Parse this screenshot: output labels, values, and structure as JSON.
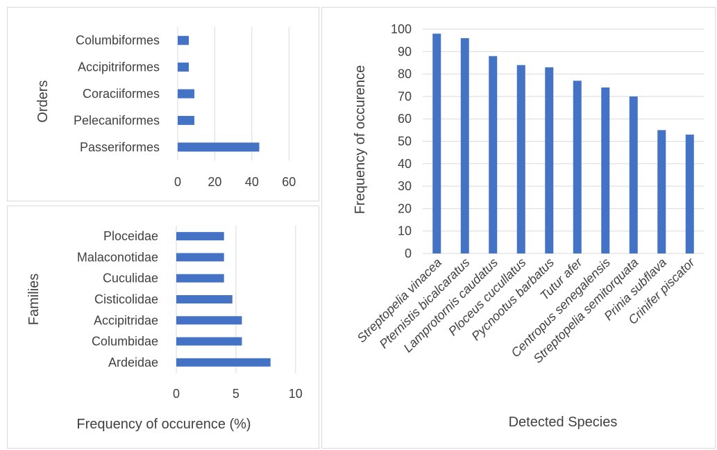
{
  "chart_data": [
    {
      "type": "bar",
      "orientation": "horizontal",
      "categories": [
        "Columbiformes",
        "Accipitriformes",
        "Coraciiformes",
        "Pelecaniformes",
        "Passeriformes"
      ],
      "values": [
        6,
        6,
        9,
        9,
        44
      ],
      "title": "",
      "xlabel": "",
      "ylabel": "Orders",
      "xlim": [
        0,
        70
      ],
      "xticks": [
        0,
        20,
        40,
        60
      ],
      "grid": true,
      "bar_color": "#4472c4"
    },
    {
      "type": "bar",
      "orientation": "horizontal",
      "categories": [
        "Ploceidae",
        "Malaconotidae",
        "Cuculidae",
        "Cisticolidae",
        "Accipitridae",
        "Columbidae",
        "Ardeidae"
      ],
      "values": [
        4,
        4,
        4,
        4.7,
        5.5,
        5.5,
        7.9
      ],
      "title": "",
      "xlabel": "Frequency of occurence (%)",
      "ylabel": "Families",
      "xlim": [
        0,
        11
      ],
      "xticks": [
        0,
        5,
        10
      ],
      "grid": true,
      "bar_color": "#4472c4"
    },
    {
      "type": "bar",
      "orientation": "vertical",
      "categories": [
        "Streptopelia vinacea",
        "Pternistis bicalcaratus",
        "Lamprotornis caudatus",
        "Ploceus cucullatus",
        "Pycnootus barbatus",
        "Tutur afer",
        "Centropus senegalensis",
        "Streptopelia semitorquata",
        "Prinia subflava",
        "Crinifer piscator"
      ],
      "values": [
        98,
        96,
        88,
        84,
        83,
        77,
        74,
        70,
        55,
        53
      ],
      "title": "",
      "xlabel": "Detected Species",
      "ylabel": "Frequency of occurence",
      "ylim": [
        0,
        100
      ],
      "yticks": [
        0,
        10,
        20,
        30,
        40,
        50,
        60,
        70,
        80,
        90,
        100
      ],
      "grid": true,
      "bar_color": "#4472c4"
    }
  ]
}
